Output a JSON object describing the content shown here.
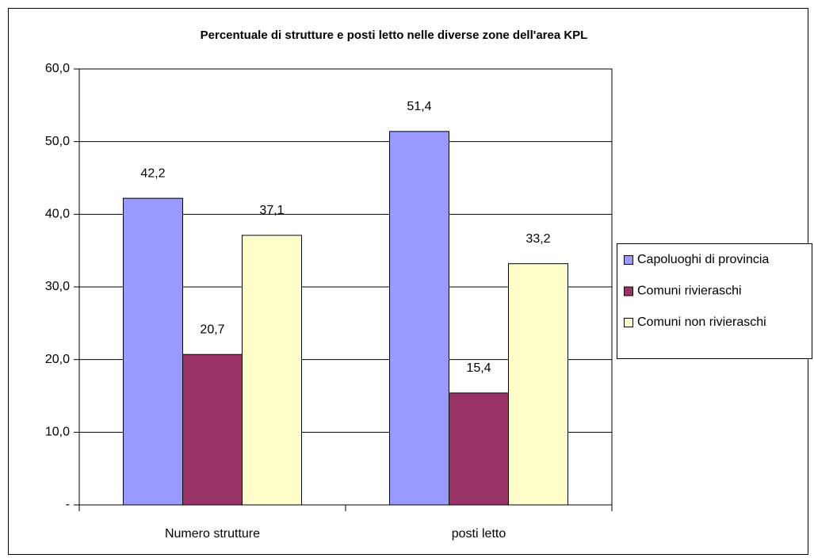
{
  "chart_data": {
    "type": "bar",
    "title": "Percentuale di strutture e posti letto nelle diverse zone dell'area KPL",
    "categories": [
      "Numero strutture",
      "posti letto"
    ],
    "series": [
      {
        "name": "Capoluoghi di provincia",
        "color": "#9999ff",
        "values": [
          42.2,
          51.4
        ],
        "value_labels": [
          "42,2",
          "51,4"
        ]
      },
      {
        "name": "Comuni rivieraschi",
        "color": "#993366",
        "values": [
          20.7,
          15.4
        ],
        "value_labels": [
          "20,7",
          "15,4"
        ]
      },
      {
        "name": "Comuni non rivieraschi",
        "color": "#ffffcc",
        "values": [
          37.1,
          33.2
        ],
        "value_labels": [
          "37,1",
          "33,2"
        ]
      }
    ],
    "ylim": [
      0,
      60
    ],
    "yticks": [
      {
        "value": 0,
        "label": "-"
      },
      {
        "value": 10,
        "label": "10,0"
      },
      {
        "value": 20,
        "label": "20,0"
      },
      {
        "value": 30,
        "label": "30,0"
      },
      {
        "value": 40,
        "label": "40,0"
      },
      {
        "value": 50,
        "label": "50,0"
      },
      {
        "value": 60,
        "label": "60,0"
      }
    ],
    "grid": true,
    "legend": "right"
  }
}
